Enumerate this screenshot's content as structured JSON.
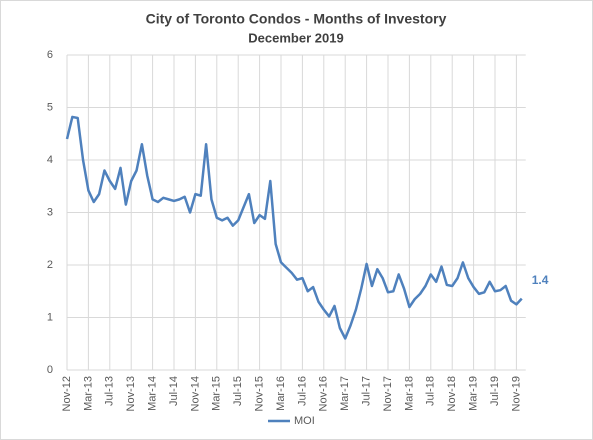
{
  "chart_data": {
    "type": "line",
    "title": "City of Toronto Condos - Months of Investory",
    "subtitle": "December 2019",
    "categories": [
      "Nov-12",
      null,
      null,
      null,
      "Mar-13",
      null,
      null,
      null,
      "Jul-13",
      null,
      null,
      null,
      "Nov-13",
      null,
      null,
      null,
      "Mar-14",
      null,
      null,
      null,
      "Jul-14",
      null,
      null,
      null,
      "Nov-14",
      null,
      null,
      null,
      "Mar-15",
      null,
      null,
      null,
      "Jul-15",
      null,
      null,
      null,
      "Nov-15",
      null,
      null,
      null,
      "Mar-16",
      null,
      null,
      null,
      "Jul-16",
      null,
      null,
      null,
      "Nov-16",
      null,
      null,
      null,
      "Mar-17",
      null,
      null,
      null,
      "Jul-17",
      null,
      null,
      null,
      "Nov-17",
      null,
      null,
      null,
      "Mar-18",
      null,
      null,
      null,
      "Jul-18",
      null,
      null,
      null,
      "Nov-18",
      null,
      null,
      null,
      "Mar-19",
      null,
      null,
      null,
      "Jul-19",
      null,
      null,
      null,
      "Nov-19",
      null
    ],
    "series": [
      {
        "name": "MOI",
        "color": "#4f81bd",
        "values": [
          4.4,
          4.82,
          4.8,
          4.0,
          3.42,
          3.2,
          3.35,
          3.8,
          3.6,
          3.45,
          3.85,
          3.15,
          3.6,
          3.8,
          4.3,
          3.7,
          3.25,
          3.2,
          3.28,
          3.25,
          3.22,
          3.25,
          3.3,
          3.0,
          3.35,
          3.32,
          4.3,
          3.25,
          2.9,
          2.85,
          2.9,
          2.75,
          2.85,
          3.1,
          3.35,
          2.8,
          2.95,
          2.88,
          3.6,
          2.4,
          2.05,
          1.95,
          1.85,
          1.72,
          1.75,
          1.5,
          1.58,
          1.3,
          1.15,
          1.02,
          1.22,
          0.8,
          0.6,
          0.85,
          1.15,
          1.55,
          2.02,
          1.6,
          1.92,
          1.75,
          1.48,
          1.5,
          1.82,
          1.55,
          1.2,
          1.35,
          1.45,
          1.6,
          1.82,
          1.68,
          1.97,
          1.62,
          1.6,
          1.75,
          2.05,
          1.75,
          1.58,
          1.45,
          1.48,
          1.68,
          1.5,
          1.52,
          1.6,
          1.32,
          1.25,
          1.36
        ],
        "value_labels": {
          "85": "1.4"
        }
      }
    ],
    "ylim": [
      0,
      6
    ],
    "yticks": [
      0,
      1,
      2,
      3,
      4,
      5,
      6
    ],
    "grid": true,
    "legend": "bottom"
  }
}
